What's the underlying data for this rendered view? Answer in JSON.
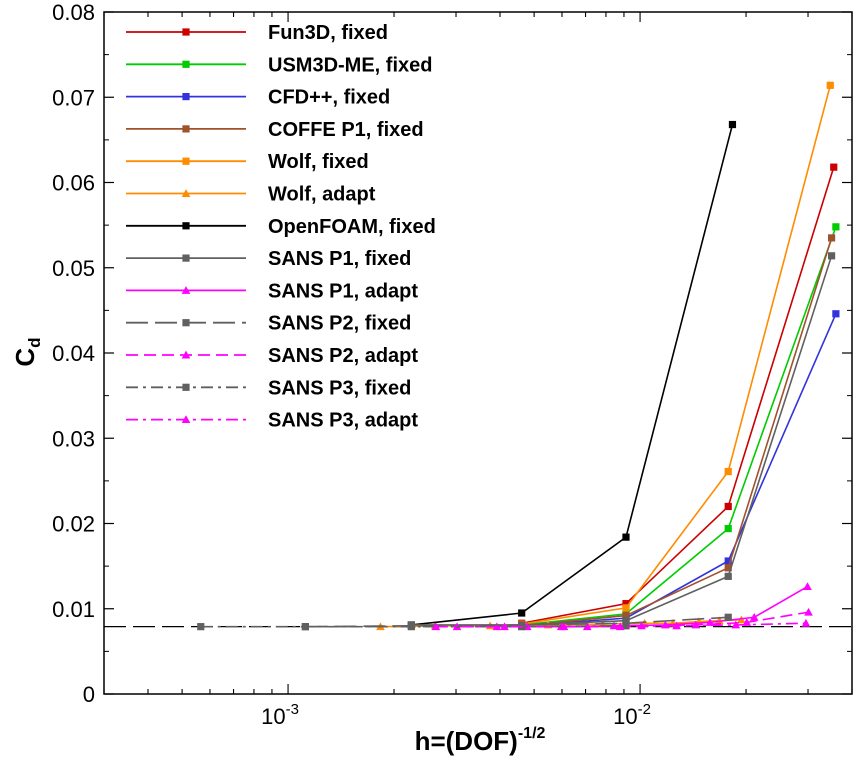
{
  "chart_data": {
    "type": "line",
    "xscale": "log",
    "xlim": [
      0.0003,
      0.04
    ],
    "ylim": [
      0,
      0.08
    ],
    "xlabel": {
      "base": "h=(DOF)",
      "sup": "-1/2"
    },
    "ylabel": {
      "base": "C",
      "sub": "d"
    },
    "xticks": [
      {
        "value": 0.001,
        "base": "10",
        "exp": "-3"
      },
      {
        "value": 0.01,
        "base": "10",
        "exp": "-2"
      }
    ],
    "yticks": [
      {
        "value": 0,
        "label": "0"
      },
      {
        "value": 0.01,
        "label": "0.01"
      },
      {
        "value": 0.02,
        "label": "0.02"
      },
      {
        "value": 0.03,
        "label": "0.03"
      },
      {
        "value": 0.04,
        "label": "0.04"
      },
      {
        "value": 0.05,
        "label": "0.05"
      },
      {
        "value": 0.06,
        "label": "0.06"
      },
      {
        "value": 0.07,
        "label": "0.07"
      },
      {
        "value": 0.08,
        "label": "0.08"
      }
    ],
    "reference_line": {
      "y": 0.0079,
      "color": "#000000",
      "dash": "long-dash"
    },
    "legend_position": "top-left",
    "series": [
      {
        "name": "Fun3D, fixed",
        "color": "#cc0000",
        "marker": "square",
        "dash": "solid",
        "x": [
          0.00461,
          0.00912,
          0.0178,
          0.0355
        ],
        "y": [
          0.0083,
          0.0106,
          0.022,
          0.0618
        ]
      },
      {
        "name": "USM3D-ME, fixed",
        "color": "#00cc00",
        "marker": "square",
        "dash": "solid",
        "x": [
          0.00461,
          0.00912,
          0.0178,
          0.036
        ],
        "y": [
          0.0081,
          0.0094,
          0.0194,
          0.0548
        ]
      },
      {
        "name": "CFD++, fixed",
        "color": "#3333dd",
        "marker": "square",
        "dash": "solid",
        "x": [
          0.00461,
          0.00912,
          0.0178,
          0.036
        ],
        "y": [
          0.008,
          0.0089,
          0.0156,
          0.0446
        ]
      },
      {
        "name": "COFFE P1, fixed",
        "color": "#a0522d",
        "marker": "square",
        "dash": "solid",
        "x": [
          0.00461,
          0.00912,
          0.0178,
          0.035
        ],
        "y": [
          0.008,
          0.0092,
          0.0148,
          0.0535
        ]
      },
      {
        "name": "Wolf, fixed",
        "color": "#ff8c00",
        "marker": "square",
        "dash": "solid",
        "x": [
          0.00461,
          0.00912,
          0.0178,
          0.0347
        ],
        "y": [
          0.0082,
          0.0101,
          0.0261,
          0.0714
        ]
      },
      {
        "name": "Wolf, adapt",
        "color": "#ff8c00",
        "marker": "triangle",
        "dash": "solid",
        "x": [
          0.00183,
          0.00262,
          0.00375,
          0.00548,
          0.00783,
          0.0103,
          0.0124,
          0.0147,
          0.0168,
          0.0194
        ],
        "y": [
          0.0079,
          0.008,
          0.008,
          0.0081,
          0.0082,
          0.0083,
          0.0083,
          0.0085,
          0.0086,
          0.0087
        ]
      },
      {
        "name": "OpenFOAM, fixed",
        "color": "#000000",
        "marker": "square",
        "dash": "solid",
        "x": [
          0.00224,
          0.00461,
          0.00912,
          0.0183
        ],
        "y": [
          0.0081,
          0.0095,
          0.0184,
          0.0668
        ]
      },
      {
        "name": "SANS P1, fixed",
        "color": "#606060",
        "marker": "square",
        "dash": "solid",
        "x": [
          0.00224,
          0.00461,
          0.00912,
          0.0178,
          0.035
        ],
        "y": [
          0.0081,
          0.0081,
          0.0086,
          0.0138,
          0.0514
        ]
      },
      {
        "name": "SANS P1, adapt",
        "color": "#ff00ff",
        "marker": "triangle",
        "dash": "solid",
        "x": [
          0.00392,
          0.00597,
          0.00843,
          0.0118,
          0.0158,
          0.0211,
          0.0299
        ],
        "y": [
          0.0079,
          0.0079,
          0.008,
          0.0081,
          0.0084,
          0.009,
          0.0126
        ]
      },
      {
        "name": "SANS P2, fixed",
        "color": "#606060",
        "marker": "square",
        "dash": "long-dash",
        "x": [
          0.00112,
          0.00224,
          0.00461,
          0.00912,
          0.0178
        ],
        "y": [
          0.0079,
          0.008,
          0.0081,
          0.0083,
          0.009
        ]
      },
      {
        "name": "SANS P2, adapt",
        "color": "#ff00ff",
        "marker": "triangle",
        "dash": "dash",
        "x": [
          0.00302,
          0.00478,
          0.00708,
          0.0101,
          0.0144,
          0.0201,
          0.0301
        ],
        "y": [
          0.0079,
          0.0079,
          0.0079,
          0.008,
          0.0081,
          0.0084,
          0.0096
        ]
      },
      {
        "name": "SANS P3, fixed",
        "color": "#606060",
        "marker": "square",
        "dash": "dash-dot",
        "x": [
          0.000565,
          0.00112,
          0.00224,
          0.00461,
          0.00912
        ],
        "y": [
          0.0079,
          0.0079,
          0.0079,
          0.0079,
          0.008
        ]
      },
      {
        "name": "SANS P3, adapt",
        "color": "#ff00ff",
        "marker": "triangle",
        "dash": "dash-dot",
        "x": [
          0.00263,
          0.00412,
          0.00608,
          0.00878,
          0.0127,
          0.0187,
          0.0296
        ],
        "y": [
          0.0079,
          0.0079,
          0.0079,
          0.0079,
          0.008,
          0.0081,
          0.0083
        ]
      }
    ]
  }
}
